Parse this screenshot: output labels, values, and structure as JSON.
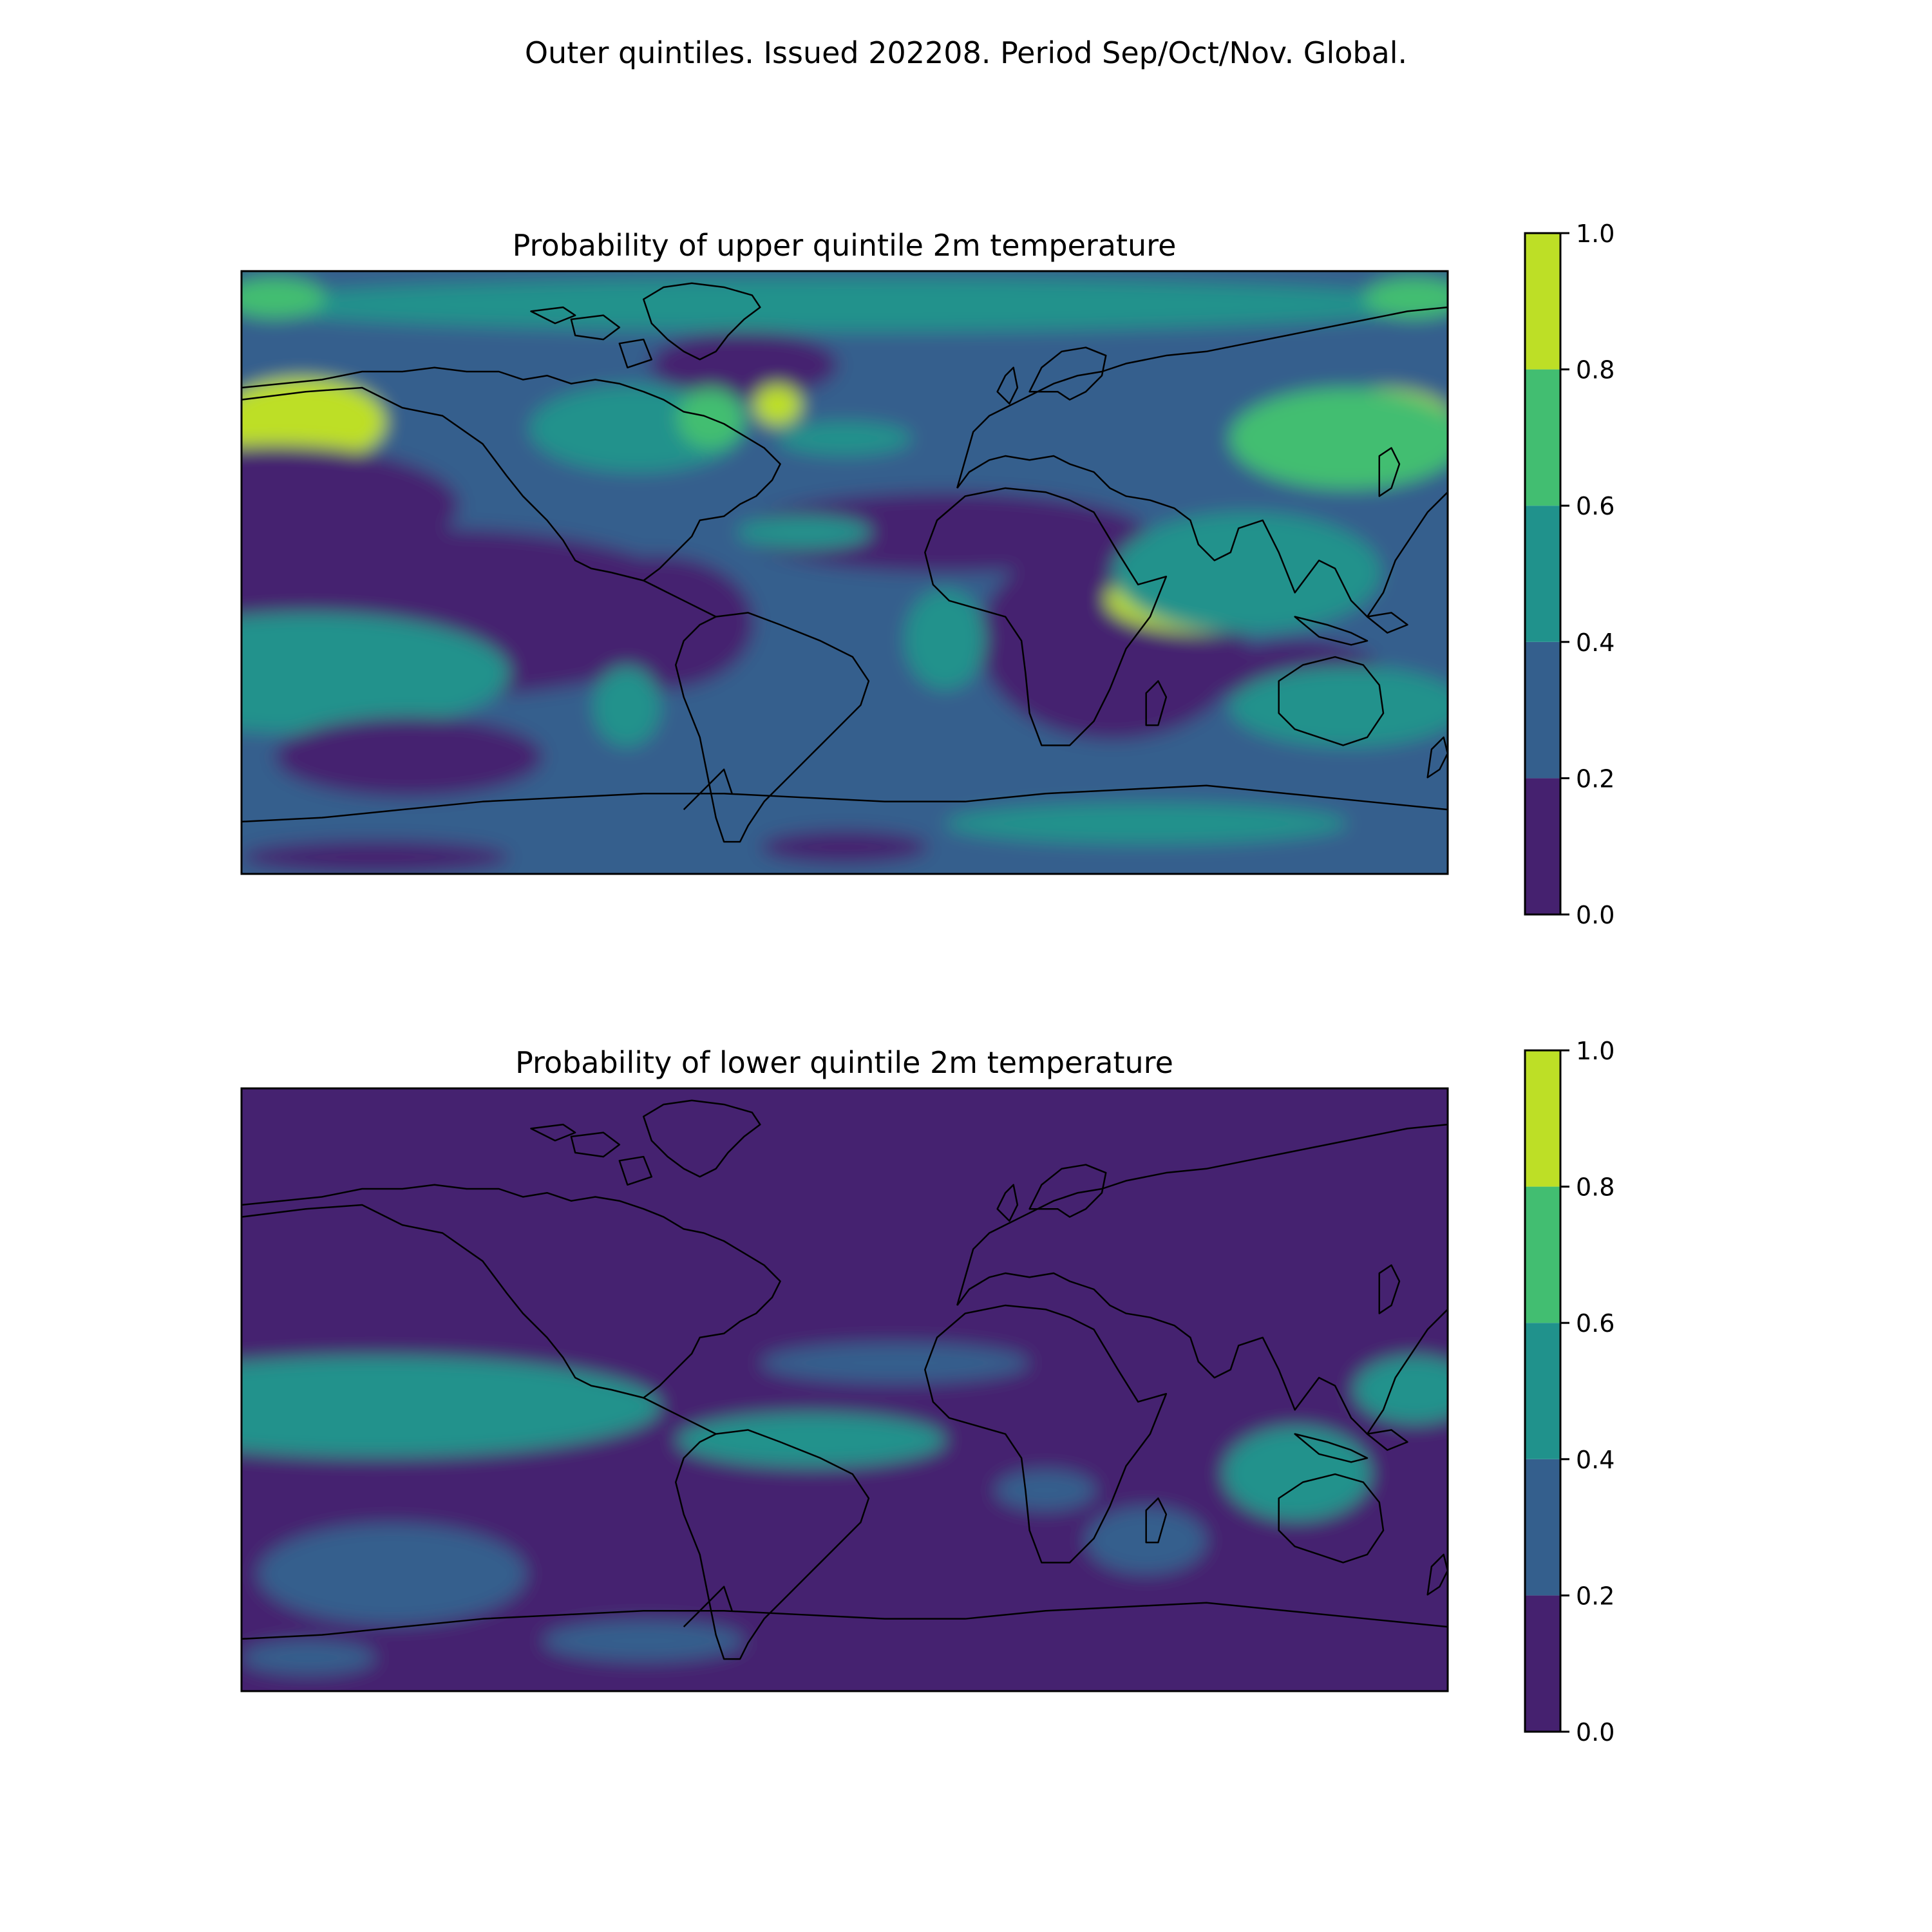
{
  "figure": {
    "title": "Outer quintiles. Issued 202208. Period Sep/Oct/Nov. Global."
  },
  "colors": {
    "levels": [
      "#45216f",
      "#345f8d",
      "#20928c",
      "#42be71",
      "#bddf26"
    ],
    "coastline": "#000000",
    "frame": "#000000"
  },
  "chart_data": [
    {
      "type": "heatmap",
      "title": "Probability of upper quintile 2m temperature",
      "map_projection": "global plate carree, longitude -180 to 180, latitude -90 to 90",
      "colorbar": {
        "ticks": [
          "0.0",
          "0.2",
          "0.4",
          "0.6",
          "0.8",
          "1.0"
        ],
        "levels": [
          [
            0.0,
            0.2
          ],
          [
            0.2,
            0.4
          ],
          [
            0.4,
            0.6
          ],
          [
            0.6,
            0.8
          ],
          [
            0.8,
            1.0
          ]
        ]
      },
      "background_level": 0.3,
      "regions": [
        {
          "lat": 62,
          "lon": -30,
          "r_lat": 10,
          "r_lon": 28,
          "value": 0.1
        },
        {
          "lat": 80,
          "lon": 0,
          "r_lat": 8,
          "r_lon": 180,
          "value": 0.5
        },
        {
          "lat": 82,
          "lon": -170,
          "r_lat": 6,
          "r_lon": 15,
          "value": 0.7
        },
        {
          "lat": 82,
          "lon": 170,
          "r_lat": 6,
          "r_lon": 15,
          "value": 0.7
        },
        {
          "lat": 45,
          "lon": -162,
          "r_lat": 13,
          "r_lon": 25,
          "value": 0.9
        },
        {
          "lat": 45,
          "lon": 160,
          "r_lat": 10,
          "r_lon": 22,
          "value": 0.9
        },
        {
          "lat": 40,
          "lon": 150,
          "r_lat": 15,
          "r_lon": 35,
          "value": 0.7
        },
        {
          "lat": 43,
          "lon": -62,
          "r_lat": 13,
          "r_lon": 32,
          "value": 0.5
        },
        {
          "lat": 46,
          "lon": -40,
          "r_lat": 9,
          "r_lon": 10,
          "value": 0.7
        },
        {
          "lat": 50,
          "lon": -20,
          "r_lat": 6,
          "r_lon": 7,
          "value": 0.8
        },
        {
          "lat": 20,
          "lon": -170,
          "r_lat": 18,
          "r_lon": 55,
          "value": 0.1
        },
        {
          "lat": -12,
          "lon": -120,
          "r_lat": 25,
          "r_lon": 80,
          "value": 0.1
        },
        {
          "lat": 12,
          "lon": 30,
          "r_lat": 12,
          "r_lon": 60,
          "value": 0.1
        },
        {
          "lat": -20,
          "lon": 80,
          "r_lat": 30,
          "r_lon": 40,
          "value": 0.1
        },
        {
          "lat": -30,
          "lon": 135,
          "r_lat": 10,
          "r_lon": 25,
          "value": 0.1
        },
        {
          "lat": -15,
          "lon": -55,
          "r_lat": 20,
          "r_lon": 28,
          "value": 0.1
        },
        {
          "lat": -25,
          "lon": -165,
          "r_lat": 8,
          "r_lon": 50,
          "value": 0.9
        },
        {
          "lat": -30,
          "lon": -160,
          "r_lat": 18,
          "r_lon": 60,
          "value": 0.5
        },
        {
          "lat": -55,
          "lon": -130,
          "r_lat": 12,
          "r_lon": 40,
          "value": 0.1
        },
        {
          "lat": -8,
          "lon": 108,
          "r_lat": 10,
          "r_lon": 30,
          "value": 0.85
        },
        {
          "lat": 0,
          "lon": 120,
          "r_lat": 18,
          "r_lon": 40,
          "value": 0.6
        },
        {
          "lat": 12,
          "lon": -12,
          "r_lat": 2,
          "r_lon": 10,
          "value": 0.8
        },
        {
          "lat": 12,
          "lon": -12,
          "r_lat": 5,
          "r_lon": 20,
          "value": 0.5
        },
        {
          "lat": -20,
          "lon": 30,
          "r_lat": 15,
          "r_lon": 12,
          "value": 0.5
        },
        {
          "lat": -40,
          "lon": -65,
          "r_lat": 12,
          "r_lon": 10,
          "value": 0.5
        },
        {
          "lat": -42,
          "lon": 170,
          "r_lat": 6,
          "r_lon": 12,
          "value": 0.7
        },
        {
          "lat": -40,
          "lon": 150,
          "r_lat": 12,
          "r_lon": 35,
          "value": 0.5
        },
        {
          "lat": -75,
          "lon": 90,
          "r_lat": 6,
          "r_lon": 60,
          "value": 0.5
        },
        {
          "lat": -82,
          "lon": 0,
          "r_lat": 5,
          "r_lon": 25,
          "value": 0.1
        },
        {
          "lat": -85,
          "lon": -140,
          "r_lat": 5,
          "r_lon": 40,
          "value": 0.1
        },
        {
          "lat": 40,
          "lon": 0,
          "r_lat": 5,
          "r_lon": 20,
          "value": 0.5
        }
      ]
    },
    {
      "type": "heatmap",
      "title": "Probability of lower quintile 2m temperature",
      "map_projection": "global plate carree, longitude -180 to 180, latitude -90 to 90",
      "colorbar": {
        "ticks": [
          "0.0",
          "0.2",
          "0.4",
          "0.6",
          "0.8",
          "1.0"
        ],
        "levels": [
          [
            0.0,
            0.2
          ],
          [
            0.2,
            0.4
          ],
          [
            0.4,
            0.6
          ],
          [
            0.6,
            0.8
          ],
          [
            0.8,
            1.0
          ]
        ]
      },
      "background_level": 0.1,
      "regions": [
        {
          "lat": -5,
          "lon": -150,
          "r_lat": 7,
          "r_lon": 55,
          "value": 0.9
        },
        {
          "lat": -5,
          "lon": -150,
          "r_lat": 12,
          "r_lon": 70,
          "value": 0.6
        },
        {
          "lat": -5,
          "lon": -140,
          "r_lat": 15,
          "r_lon": 85,
          "value": 0.4
        },
        {
          "lat": -55,
          "lon": -130,
          "r_lat": 6,
          "r_lon": 18,
          "value": 0.7
        },
        {
          "lat": -55,
          "lon": -130,
          "r_lat": 12,
          "r_lon": 30,
          "value": 0.5
        },
        {
          "lat": -55,
          "lon": -135,
          "r_lat": 15,
          "r_lon": 40,
          "value": 0.3
        },
        {
          "lat": -15,
          "lon": 0,
          "r_lat": 4,
          "r_lon": 30,
          "value": 0.6
        },
        {
          "lat": -15,
          "lon": -10,
          "r_lat": 8,
          "r_lon": 40,
          "value": 0.4
        },
        {
          "lat": 8,
          "lon": 15,
          "r_lat": 6,
          "r_lon": 40,
          "value": 0.3
        },
        {
          "lat": -25,
          "lon": 133,
          "r_lat": 10,
          "r_lon": 15,
          "value": 0.6
        },
        {
          "lat": -25,
          "lon": 135,
          "r_lat": 14,
          "r_lon": 22,
          "value": 0.4
        },
        {
          "lat": 0,
          "lon": 175,
          "r_lat": 6,
          "r_lon": 10,
          "value": 0.9
        },
        {
          "lat": 0,
          "lon": 170,
          "r_lat": 10,
          "r_lon": 18,
          "value": 0.5
        },
        {
          "lat": -45,
          "lon": 90,
          "r_lat": 10,
          "r_lon": 18,
          "value": 0.3
        },
        {
          "lat": -30,
          "lon": 60,
          "r_lat": 6,
          "r_lon": 15,
          "value": 0.3
        },
        {
          "lat": -75,
          "lon": -60,
          "r_lat": 6,
          "r_lon": 30,
          "value": 0.3
        },
        {
          "lat": -80,
          "lon": -160,
          "r_lat": 5,
          "r_lon": 20,
          "value": 0.3
        }
      ]
    }
  ]
}
